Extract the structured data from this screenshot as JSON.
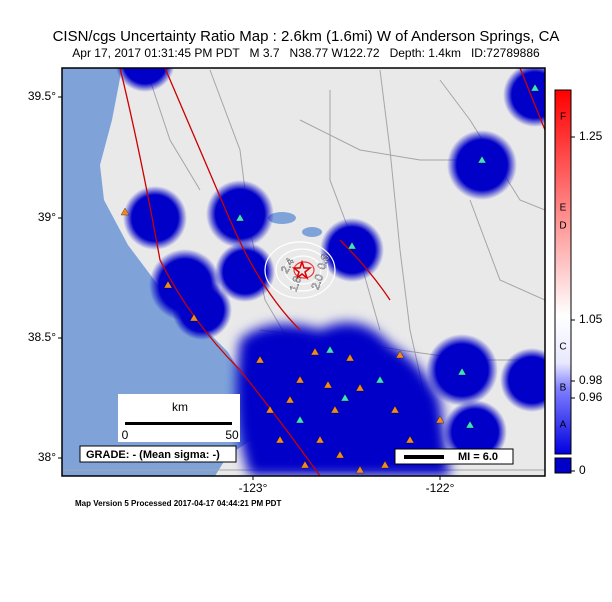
{
  "header": {
    "title": "CISN/cgs Uncertainty Ratio Map : 2.6km (1.6mi) W of Anderson Springs, CA",
    "subtitle": "Apr 17, 2017 01:31:45 PM PDT   M 3.7   N38.77 W122.72   Depth: 1.4km   ID:72789886"
  },
  "map": {
    "lat_labels": [
      "39.5°",
      "39°",
      "38.5°",
      "38°"
    ],
    "lon_labels": [
      "-123°",
      "-122°"
    ],
    "contour_labels": [
      "2.4",
      "1.8",
      "2.0",
      "0.6"
    ]
  },
  "scale_bar": {
    "unit": "km",
    "start": "0",
    "end": "50"
  },
  "grade": "GRADE: - (Mean sigma: -)",
  "legend": {
    "mi": "MI = 6.0"
  },
  "colorbar": {
    "ticks": [
      "1.25",
      "1.05",
      "0.98",
      "0.96",
      "0"
    ],
    "grades": [
      "F",
      "E",
      "D",
      "C",
      "B",
      "A"
    ]
  },
  "footer": "Map Version 5 Processed 2017-04-17 04:44:21 PM PDT"
}
